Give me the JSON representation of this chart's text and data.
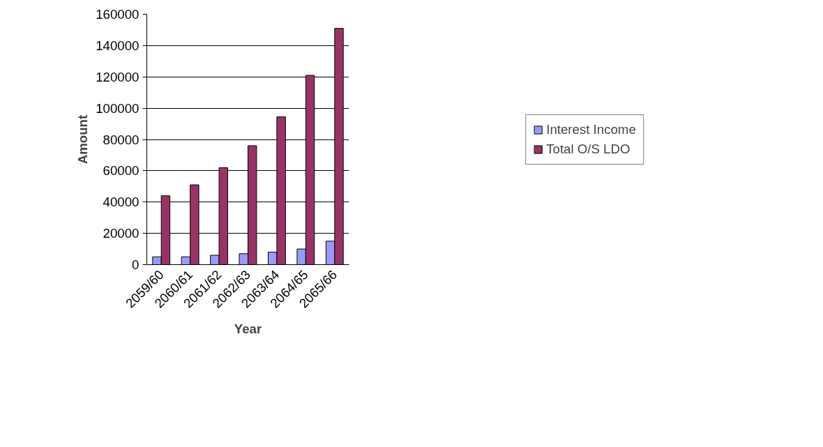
{
  "chart_data": {
    "type": "bar",
    "xlabel": "Year",
    "ylabel": "Amount",
    "categories": [
      "2059/60",
      "2060/61",
      "2061/62",
      "2062/63",
      "2063/64",
      "2064/65",
      "2065/66"
    ],
    "series": [
      {
        "name": "Interest Income",
        "color": "#9999ff",
        "values": [
          5000,
          5000,
          6000,
          7000,
          8000,
          10000,
          15000
        ]
      },
      {
        "name": "Total O/S LDO",
        "color": "#993366",
        "values": [
          44000,
          51000,
          62000,
          76000,
          94500,
          121000,
          151000
        ]
      }
    ],
    "ylim": [
      0,
      160000
    ],
    "yticks": [
      0,
      20000,
      40000,
      60000,
      80000,
      100000,
      120000,
      140000,
      160000
    ],
    "grid": "y",
    "legend": "right"
  }
}
